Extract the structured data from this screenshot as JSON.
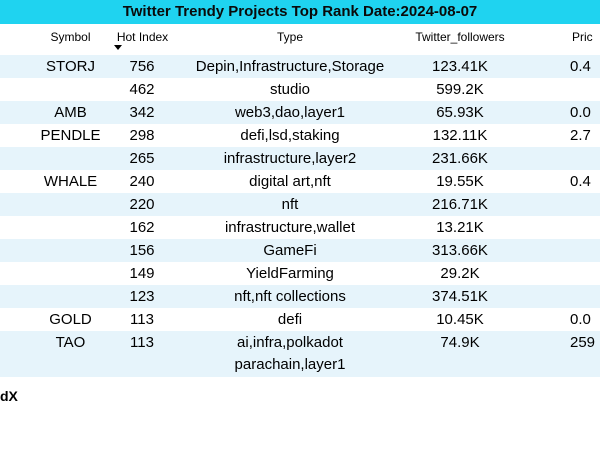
{
  "title": "Twitter Trendy Projects Top Rank Date:2024-08-07",
  "headers": {
    "symbol": "Symbol",
    "hot_index": "Hot Index",
    "type": "Type",
    "twitter_followers": "Twitter_followers",
    "price": "Pric"
  },
  "rows": [
    {
      "symbol": "STORJ",
      "hot": "756",
      "type": "Depin,Infrastructure,Storage",
      "followers": "123.41K",
      "price": "0.4"
    },
    {
      "symbol": "",
      "hot": "462",
      "type": "studio",
      "followers": "599.2K",
      "price": ""
    },
    {
      "symbol": "AMB",
      "hot": "342",
      "type": "web3,dao,layer1",
      "followers": "65.93K",
      "price": "0.0"
    },
    {
      "symbol": "PENDLE",
      "hot": "298",
      "type": "defi,lsd,staking",
      "followers": "132.11K",
      "price": "2.7"
    },
    {
      "symbol": "",
      "hot": "265",
      "type": "infrastructure,layer2",
      "followers": "231.66K",
      "price": ""
    },
    {
      "symbol": "WHALE",
      "hot": "240",
      "type": "digital art,nft",
      "followers": "19.55K",
      "price": "0.4"
    },
    {
      "symbol": "",
      "hot": "220",
      "type": "nft",
      "followers": "216.71K",
      "price": ""
    },
    {
      "symbol": "",
      "hot": "162",
      "type": "infrastructure,wallet",
      "followers": "13.21K",
      "price": ""
    },
    {
      "symbol": "",
      "hot": "156",
      "type": "GameFi",
      "followers": "313.66K",
      "price": ""
    },
    {
      "symbol": "",
      "hot": "149",
      "type": "YieldFarming",
      "followers": "29.2K",
      "price": ""
    },
    {
      "symbol": "",
      "hot": "123",
      "type": "nft,nft collections",
      "followers": "374.51K",
      "price": ""
    },
    {
      "symbol": "GOLD",
      "hot": "113",
      "type": "defi",
      "followers": "10.45K",
      "price": "0.0"
    },
    {
      "symbol": "TAO",
      "hot": "113",
      "type": "ai,infra,polkadot",
      "type2": "parachain,layer1",
      "followers": "74.9K",
      "price": "259"
    }
  ],
  "footer": "dX",
  "colors": {
    "title_bg": "#1fd3f0",
    "alt_row_bg": "#e6f4fb"
  }
}
